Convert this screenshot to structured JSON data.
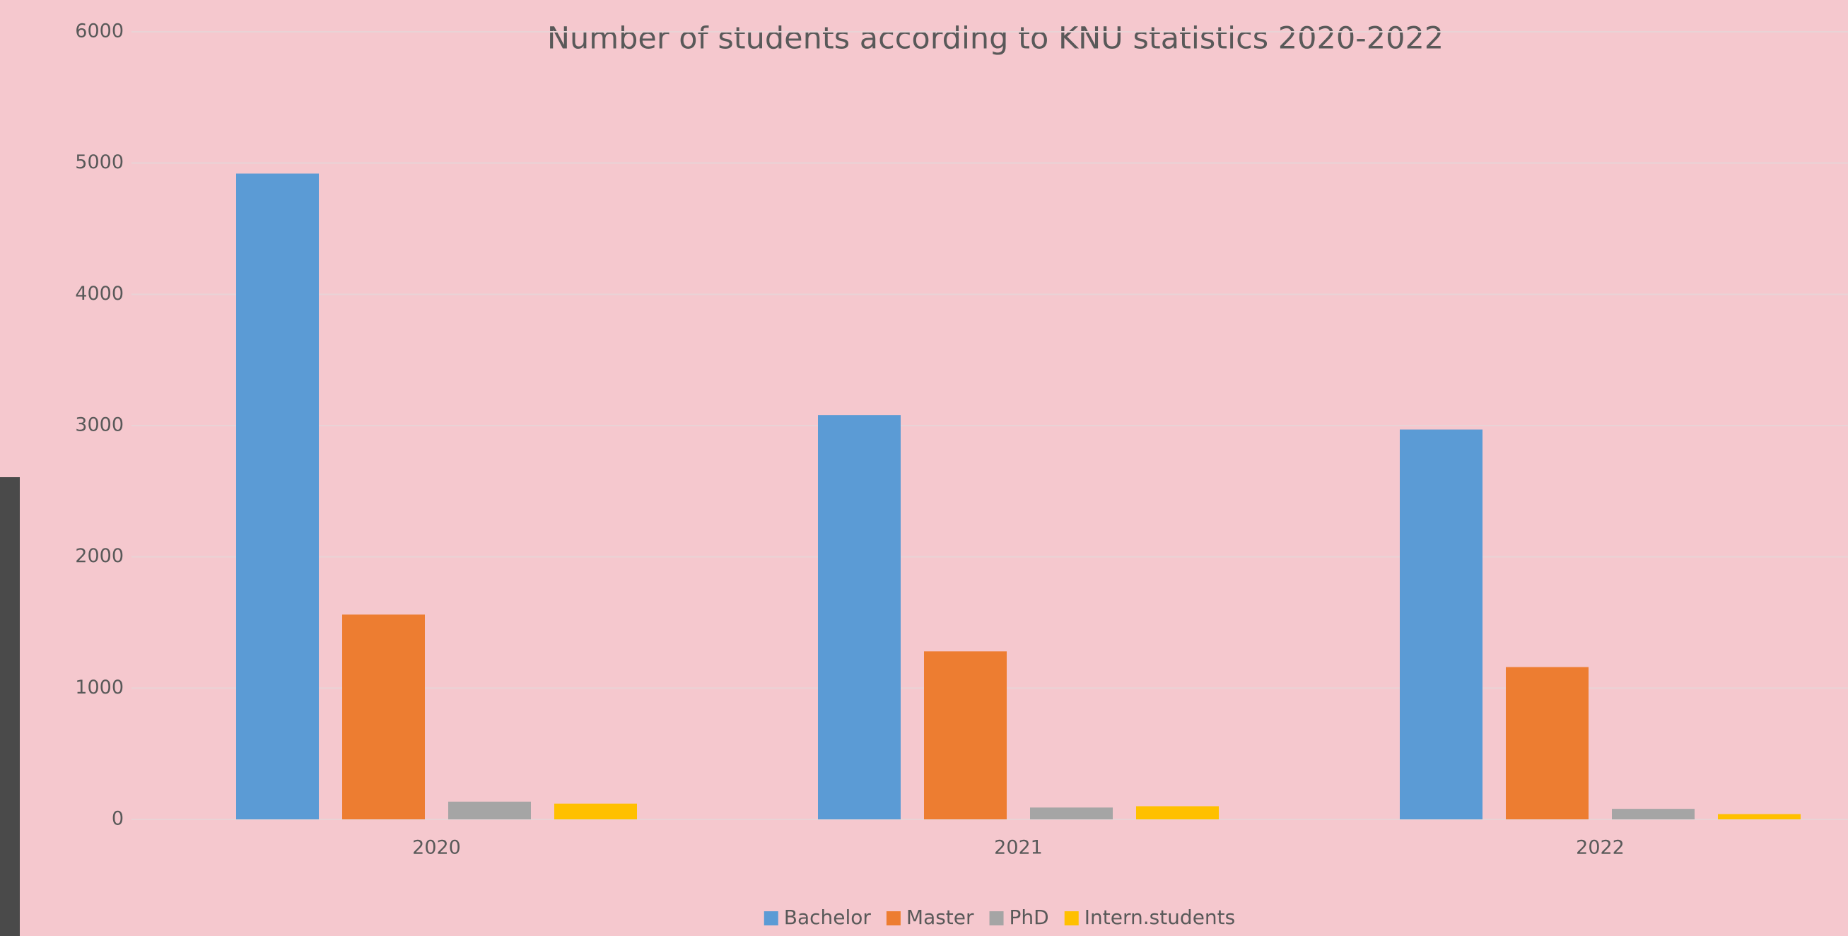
{
  "chart_data": {
    "type": "bar",
    "title": "Number of students according to KNU statistics 2020-2022",
    "categories": [
      "2020",
      "2021",
      "2022"
    ],
    "series": [
      {
        "name": "Bachelor",
        "color": "#5b9bd5",
        "values": [
          4920,
          3080,
          2970
        ]
      },
      {
        "name": "Master",
        "color": "#ed7d31",
        "values": [
          1560,
          1280,
          1160
        ]
      },
      {
        "name": "PhD",
        "color": "#a5a5a5",
        "values": [
          135,
          90,
          80
        ]
      },
      {
        "name": "Intern.students",
        "color": "#ffc000",
        "values": [
          120,
          100,
          40
        ]
      }
    ],
    "ylim": [
      0,
      6000
    ],
    "yticks": [
      0,
      1000,
      2000,
      3000,
      4000,
      5000,
      6000
    ],
    "grid": true,
    "legend": "bottom"
  }
}
